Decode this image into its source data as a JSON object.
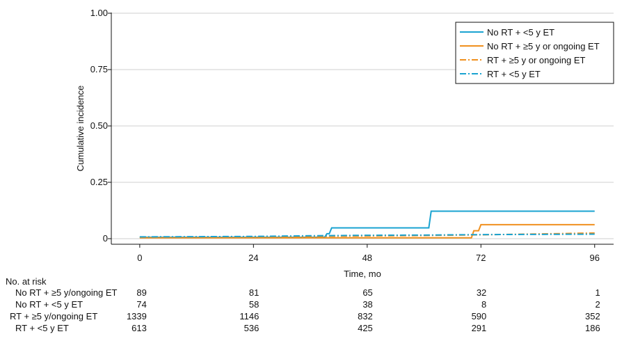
{
  "chart_data": {
    "type": "line",
    "title": "",
    "xlabel": "Time, mo",
    "ylabel": "Cumulative incidence",
    "xlim": [
      -6,
      100
    ],
    "ylim": [
      0,
      1
    ],
    "x_ticks": [
      0,
      24,
      48,
      72,
      96
    ],
    "x_tick_labels": [
      "0",
      "24",
      "48",
      "72",
      "96"
    ],
    "y_ticks": [
      0,
      0.25,
      0.5,
      0.75,
      1
    ],
    "y_tick_labels": [
      "0",
      "0.25",
      "0.50",
      "0.75",
      "1.00"
    ],
    "grid": "horizontal",
    "legend_position": "top-right",
    "series": [
      {
        "name": "No RT + <5 y ET",
        "color": "#1aa3d1",
        "dash": "solid",
        "x": [
          0,
          39,
          39.5,
          40,
          40.5,
          61,
          61.5,
          96
        ],
        "y": [
          0.006,
          0.006,
          0.022,
          0.022,
          0.048,
          0.048,
          0.122,
          0.122
        ]
      },
      {
        "name": "No RT + ≥5 y or ongoing ET",
        "color": "#f0901e",
        "dash": "solid",
        "x": [
          0,
          70,
          70.5,
          71.5,
          72,
          96
        ],
        "y": [
          0.004,
          0.004,
          0.035,
          0.035,
          0.062,
          0.062
        ]
      },
      {
        "name": "RT + ≥5 y or ongoing ET",
        "color": "#f0901e",
        "dash": "dashdot",
        "x": [
          0,
          12,
          24,
          36,
          48,
          60,
          72,
          84,
          96
        ],
        "y": [
          0.006,
          0.007,
          0.008,
          0.01,
          0.012,
          0.014,
          0.017,
          0.021,
          0.025
        ]
      },
      {
        "name": "RT + <5 y ET",
        "color": "#1aa3d1",
        "dash": "dashdot",
        "x": [
          0,
          12,
          24,
          36,
          48,
          60,
          72,
          84,
          96
        ],
        "y": [
          0.008,
          0.009,
          0.01,
          0.013,
          0.015,
          0.016,
          0.018,
          0.019,
          0.02
        ]
      }
    ]
  },
  "risk_table": {
    "title": "No. at risk",
    "rows": [
      {
        "label": "No RT + ≥5 y/ongoing ET",
        "values": [
          "89",
          "81",
          "65",
          "32",
          "1"
        ]
      },
      {
        "label": "No RT + <5 y ET",
        "values": [
          "74",
          "58",
          "38",
          "8",
          "2"
        ]
      },
      {
        "label": "RT + ≥5 y/ongoing ET",
        "values": [
          "1339",
          "1146",
          "832",
          "590",
          "352"
        ]
      },
      {
        "label": "RT + <5 y ET",
        "values": [
          "613",
          "536",
          "425",
          "291",
          "186"
        ]
      }
    ]
  }
}
